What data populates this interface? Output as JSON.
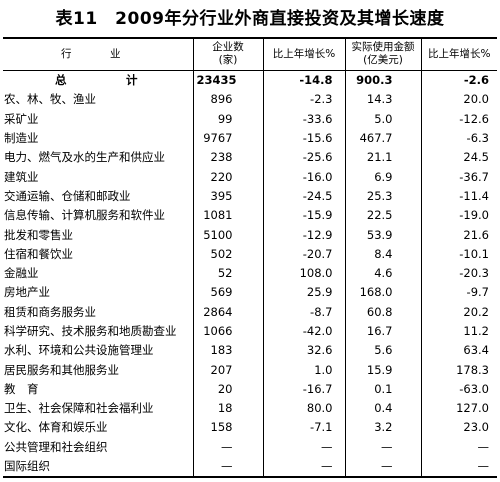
{
  "title": "表11　2009年分行业外商直接投资及其增长速度",
  "header": {
    "industry": "行　业",
    "enterprises": "企业数\n(家)",
    "enterprises_growth": "比上年增长%",
    "actual_use": "实际使用金额\n(亿美元)",
    "actual_use_growth": "比上年增长%"
  },
  "rows": [
    {
      "name": "总　计",
      "count": "23435",
      "count_growth": "-14.8",
      "amount": "900.3",
      "amount_growth": "-2.6"
    },
    {
      "name": "农、林、牧、渔业",
      "count": "896",
      "count_growth": "-2.3",
      "amount": "14.3",
      "amount_growth": "20.0"
    },
    {
      "name": "采矿业",
      "count": "99",
      "count_growth": "-33.6",
      "amount": "5.0",
      "amount_growth": "-12.6"
    },
    {
      "name": "制造业",
      "count": "9767",
      "count_growth": "-15.6",
      "amount": "467.7",
      "amount_growth": "-6.3"
    },
    {
      "name": "电力、燃气及水的生产和供应业",
      "count": "238",
      "count_growth": "-25.6",
      "amount": "21.1",
      "amount_growth": "24.5"
    },
    {
      "name": "建筑业",
      "count": "220",
      "count_growth": "-16.0",
      "amount": "6.9",
      "amount_growth": "-36.7"
    },
    {
      "name": "交通运输、仓储和邮政业",
      "count": "395",
      "count_growth": "-24.5",
      "amount": "25.3",
      "amount_growth": "-11.4"
    },
    {
      "name": "信息传输、计算机服务和软件业",
      "count": "1081",
      "count_growth": "-15.9",
      "amount": "22.5",
      "amount_growth": "-19.0"
    },
    {
      "name": "批发和零售业",
      "count": "5100",
      "count_growth": "-12.9",
      "amount": "53.9",
      "amount_growth": "21.6"
    },
    {
      "name": "住宿和餐饮业",
      "count": "502",
      "count_growth": "-20.7",
      "amount": "8.4",
      "amount_growth": "-10.1"
    },
    {
      "name": "金融业",
      "count": "52",
      "count_growth": "108.0",
      "amount": "4.6",
      "amount_growth": "-20.3"
    },
    {
      "name": "房地产业",
      "count": "569",
      "count_growth": "25.9",
      "amount": "168.0",
      "amount_growth": "-9.7"
    },
    {
      "name": "租赁和商务服务业",
      "count": "2864",
      "count_growth": "-8.7",
      "amount": "60.8",
      "amount_growth": "20.2"
    },
    {
      "name": "科学研究、技术服务和地质勘查业",
      "count": "1066",
      "count_growth": "-42.0",
      "amount": "16.7",
      "amount_growth": "11.2"
    },
    {
      "name": "水利、环境和公共设施管理业",
      "count": "183",
      "count_growth": "32.6",
      "amount": "5.6",
      "amount_growth": "63.4"
    },
    {
      "name": "居民服务和其他服务业",
      "count": "207",
      "count_growth": "1.0",
      "amount": "15.9",
      "amount_growth": "178.3"
    },
    {
      "name": "教　育",
      "count": "20",
      "count_growth": "-16.7",
      "amount": "0.1",
      "amount_growth": "-63.0"
    },
    {
      "name": "卫生、社会保障和社会福利业",
      "count": "18",
      "count_growth": "80.0",
      "amount": "0.4",
      "amount_growth": "127.0"
    },
    {
      "name": "文化、体育和娱乐业",
      "count": "158",
      "count_growth": "-7.1",
      "amount": "3.2",
      "amount_growth": "23.0"
    },
    {
      "name": "公共管理和社会组织",
      "count": "—",
      "count_growth": "—",
      "amount": "—",
      "amount_growth": "—"
    },
    {
      "name": "国际组织",
      "count": "—",
      "count_growth": "—",
      "amount": "—",
      "amount_growth": "—"
    }
  ]
}
